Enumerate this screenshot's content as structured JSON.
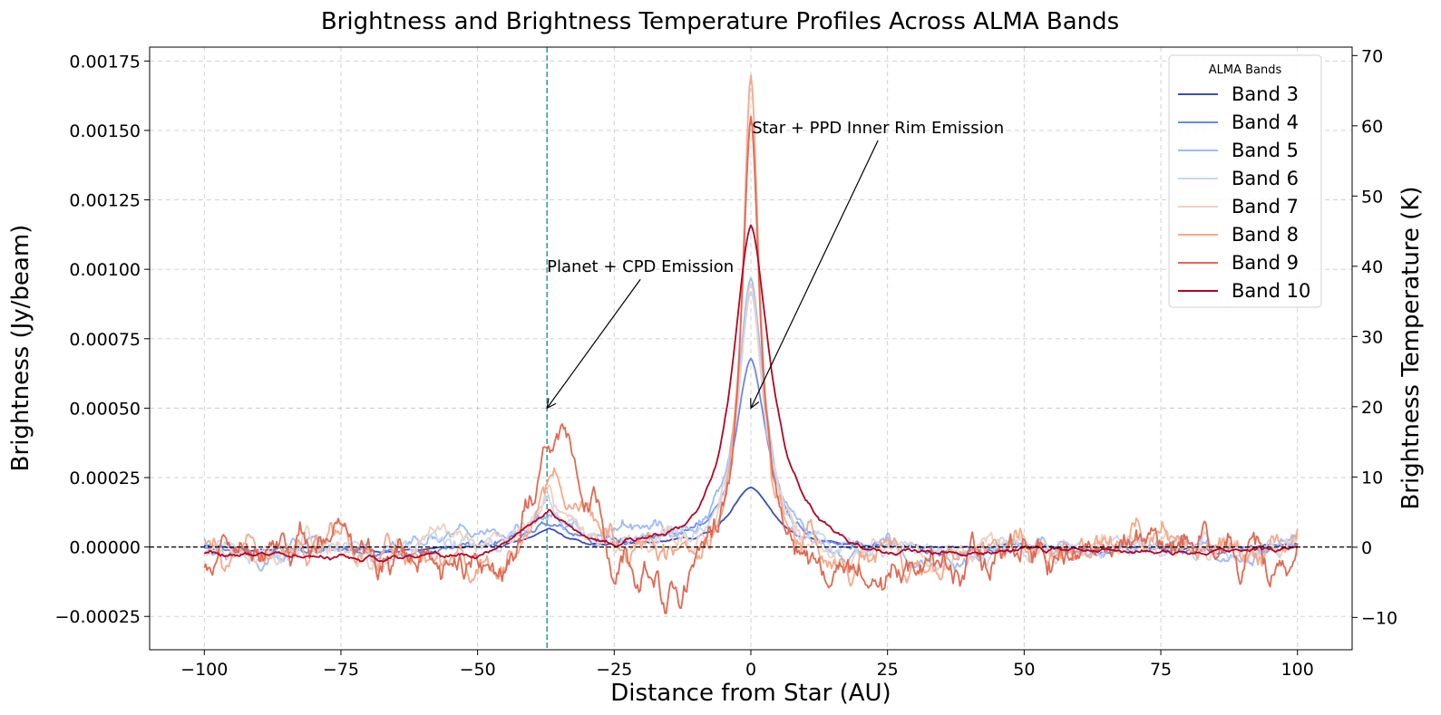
{
  "chart_data": {
    "type": "line",
    "title": "Brightness and Brightness Temperature Profiles Across ALMA Bands",
    "xlabel": "Distance from Star (AU)",
    "ylabel": "Brightness (Jy/beam)",
    "ylabel_right": "Brightness Temperature (K)",
    "xlim": [
      -110,
      110
    ],
    "ylim": [
      -0.00037,
      0.0018
    ],
    "ylim_right": [
      -14.6,
      71.2
    ],
    "xticks": [
      -100,
      -75,
      -50,
      -25,
      0,
      25,
      50,
      75,
      100
    ],
    "xtick_labels": [
      "−100",
      "−75",
      "−50",
      "−25",
      "0",
      "25",
      "50",
      "75",
      "100"
    ],
    "yticks": [
      -0.00025,
      0,
      0.00025,
      0.0005,
      0.00075,
      0.001,
      0.00125,
      0.0015,
      0.00175
    ],
    "ytick_labels": [
      "−0.00025",
      "0.00000",
      "0.00025",
      "0.00050",
      "0.00075",
      "0.00100",
      "0.00125",
      "0.00150",
      "0.00175"
    ],
    "yticks_right": [
      -10,
      0,
      10,
      20,
      30,
      40,
      50,
      60,
      70
    ],
    "ytick_right_labels": [
      "−10",
      "0",
      "10",
      "20",
      "30",
      "40",
      "50",
      "60",
      "70"
    ],
    "grid": true,
    "legend": {
      "title": "ALMA Bands",
      "placement": "top-right"
    },
    "reference_lines": [
      {
        "orientation": "vertical",
        "x": -37.3,
        "color": "#119988",
        "style": "dashed"
      },
      {
        "orientation": "horizontal",
        "y": 0,
        "color": "#000000",
        "style": "dashed"
      }
    ],
    "annotations": [
      {
        "text": "Planet + CPD Emission",
        "text_x": -37.3,
        "text_y": 0.00099,
        "arrow_x": -37.3,
        "arrow_y": 0.0005
      },
      {
        "text": "Star + PPD Inner Rim Emission",
        "text_x": 0.2,
        "text_y": 0.00149,
        "arrow_x": 0,
        "arrow_y": 0.0005
      }
    ],
    "series": [
      {
        "name": "Band 3",
        "color": "#3b4cc0",
        "peak": 0.000215,
        "planet_peak": 6.5e-05,
        "width": 5.0,
        "noise": 6e-06,
        "seed": 3,
        "x": [
          -100,
          -90,
          -80,
          -70,
          -60,
          -50,
          -45,
          -40,
          -37,
          -34,
          -30,
          -25,
          -20,
          -15,
          -10,
          -6,
          -4,
          -2,
          0,
          2,
          4,
          6,
          10,
          15,
          20,
          25,
          30,
          40,
          50,
          60,
          70,
          80,
          90,
          100
        ],
        "y": [
          5e-06,
          -1e-05,
          -5e-06,
          -1e-05,
          -1e-05,
          5e-06,
          1e-05,
          4e-05,
          6.5e-05,
          4e-05,
          1.2e-05,
          1.2e-05,
          2e-05,
          2.5e-05,
          3e-05,
          5e-05,
          8e-05,
          0.00015,
          0.000215,
          0.00015,
          8e-05,
          4e-05,
          2e-05,
          1e-05,
          5e-06,
          5e-06,
          0.0,
          0.0,
          1e-05,
          -1e-05,
          0.0,
          -5e-06,
          0.0,
          1e-05
        ]
      },
      {
        "name": "Band 4",
        "color": "#6788ee",
        "peak": 0.00068,
        "planet_peak": 9e-05,
        "width": 3.6,
        "noise": 1.8e-05,
        "seed": 4,
        "x": [
          -100,
          -90,
          -80,
          -70,
          -60,
          -50,
          -45,
          -40,
          -37,
          -34,
          -30,
          -25,
          -20,
          -15,
          -10,
          -6,
          -4,
          -2,
          0,
          2,
          4,
          6,
          10,
          15,
          20,
          25,
          30,
          40,
          50,
          60,
          70,
          80,
          90,
          100
        ],
        "y": [
          0.0,
          -2e-05,
          -1e-05,
          -2e-05,
          -2e-05,
          1e-05,
          2e-05,
          6e-05,
          9e-05,
          6e-05,
          2e-05,
          2e-05,
          3e-05,
          4e-05,
          6e-05,
          0.00012,
          0.0002,
          0.00042,
          0.00068,
          0.00042,
          0.0002,
          0.0001,
          4e-05,
          1e-05,
          0.0,
          0.0,
          -1e-05,
          -2e-05,
          0.0,
          -2e-05,
          0.0,
          -1e-05,
          -1e-05,
          0.0
        ]
      },
      {
        "name": "Band 5",
        "color": "#9abbff",
        "peak": 0.00097,
        "planet_peak": 0.00012,
        "width": 3.0,
        "noise": 3.5e-05,
        "seed": 5,
        "x": [
          -100,
          -90,
          -80,
          -70,
          -60,
          -50,
          -45,
          -40,
          -37,
          -34,
          -30,
          -25,
          -20,
          -15,
          -10,
          -6,
          -4,
          -2,
          0,
          2,
          4,
          6,
          10,
          15,
          20,
          25,
          30,
          40,
          50,
          60,
          70,
          80,
          90,
          100
        ],
        "y": [
          0.0,
          -7e-05,
          4e-05,
          -2e-05,
          1e-05,
          5e-05,
          3e-05,
          8e-05,
          0.00012,
          8e-05,
          3e-05,
          6e-05,
          8e-05,
          6e-05,
          6e-05,
          0.00014,
          0.0003,
          0.0006,
          0.00097,
          0.0006,
          0.0003,
          0.00012,
          4e-05,
          0.0,
          -4e-05,
          4e-05,
          -7e-05,
          -4e-05,
          2e-05,
          -3e-05,
          1e-05,
          2e-05,
          -4e-05,
          2e-05
        ]
      },
      {
        "name": "Band 6",
        "color": "#c9d7f0",
        "peak": 0.00092,
        "planet_peak": 0.00015,
        "width": 2.8,
        "noise": 4e-05,
        "seed": 6,
        "x": [
          -100,
          -90,
          -80,
          -70,
          -60,
          -50,
          -45,
          -40,
          -37,
          -34,
          -30,
          -25,
          -20,
          -15,
          -10,
          -6,
          -4,
          -2,
          0,
          2,
          4,
          6,
          10,
          15,
          20,
          25,
          30,
          40,
          50,
          60,
          70,
          80,
          90,
          100
        ],
        "y": [
          0.0,
          -2e-05,
          1e-05,
          -2e-05,
          1e-05,
          2e-05,
          3e-05,
          0.0001,
          0.00015,
          0.0001,
          3e-05,
          3e-05,
          5e-05,
          4e-05,
          5e-05,
          0.00012,
          0.00028,
          0.00058,
          0.00092,
          0.00058,
          0.00028,
          0.00012,
          4e-05,
          0.0,
          -2e-05,
          0.0,
          -2e-05,
          -1e-05,
          0.0,
          -1e-05,
          0.0,
          1e-05,
          -1e-05,
          1e-05
        ]
      },
      {
        "name": "Band 7",
        "color": "#edd1c2",
        "peak": 0.00095,
        "planet_peak": 0.00018,
        "width": 2.6,
        "noise": 5e-05,
        "seed": 7,
        "x": [
          -100,
          -90,
          -80,
          -70,
          -60,
          -50,
          -45,
          -40,
          -37,
          -34,
          -30,
          -25,
          -20,
          -15,
          -10,
          -6,
          -4,
          -2,
          0,
          2,
          4,
          6,
          10,
          15,
          20,
          25,
          30,
          40,
          50,
          60,
          70,
          80,
          90,
          100
        ],
        "y": [
          1e-05,
          -3e-05,
          1e-05,
          -3e-05,
          2e-05,
          3e-05,
          4e-05,
          0.00012,
          0.00018,
          0.00012,
          4e-05,
          2e-05,
          4e-05,
          3e-05,
          4e-05,
          0.00012,
          0.0003,
          0.0006,
          0.00095,
          0.0006,
          0.0003,
          0.00012,
          3e-05,
          -1e-05,
          -3e-05,
          1e-05,
          -3e-05,
          -2e-05,
          2e-05,
          -2e-05,
          1e-05,
          2e-05,
          -2e-05,
          1e-05
        ]
      },
      {
        "name": "Band 8",
        "color": "#f7a889",
        "peak": 0.0017,
        "planet_peak": 0.0002,
        "width": 1.8,
        "noise": 7e-05,
        "seed": 8,
        "x": [
          -100,
          -90,
          -80,
          -70,
          -60,
          -50,
          -45,
          -40,
          -37,
          -34,
          -30,
          -25,
          -20,
          -15,
          -10,
          -6,
          -4,
          -2,
          0,
          2,
          4,
          6,
          10,
          15,
          20,
          25,
          30,
          40,
          50,
          60,
          70,
          80,
          90,
          100
        ],
        "y": [
          0.0,
          -4e-05,
          1e-05,
          -4e-05,
          0.0,
          -8e-05,
          -0.00012,
          8e-05,
          0.0002,
          0.00015,
          0.0001,
          0.0,
          2e-05,
          -4e-05,
          2e-05,
          8e-05,
          0.00025,
          0.0008,
          0.0017,
          0.0008,
          0.00025,
          8e-05,
          1e-05,
          -6e-05,
          -5e-05,
          -3e-05,
          -6e-05,
          -3e-05,
          2e-05,
          -2e-05,
          3e-05,
          0.0,
          -3e-05,
          0.0
        ]
      },
      {
        "name": "Band 9",
        "color": "#e26952",
        "peak": 0.00155,
        "planet_peak": 0.00042,
        "width": 1.9,
        "noise": 8.5e-05,
        "seed": 9,
        "x": [
          -100,
          -90,
          -80,
          -70,
          -60,
          -50,
          -45,
          -40,
          -37,
          -34,
          -30,
          -25,
          -20,
          -15,
          -10,
          -6,
          -4,
          -2,
          0,
          2,
          4,
          6,
          10,
          15,
          20,
          25,
          30,
          40,
          50,
          60,
          70,
          80,
          90,
          100
        ],
        "y": [
          -7e-05,
          0.0,
          6e-05,
          -2e-05,
          -3e-05,
          -0.0001,
          -8e-05,
          0.0002,
          0.00032,
          0.00045,
          0.00015,
          -9e-05,
          -0.00015,
          -0.00018,
          -8e-05,
          5e-05,
          0.0002,
          0.0007,
          0.00155,
          0.0007,
          0.0002,
          4e-05,
          -4e-05,
          -9e-05,
          -0.0001,
          -8e-05,
          -0.0001,
          -4e-05,
          0.0,
          -3e-05,
          2e-05,
          4e-05,
          -2e-05,
          -8e-05
        ]
      },
      {
        "name": "Band 10",
        "color": "#b40426",
        "peak": 0.00116,
        "planet_peak": 0.00013,
        "width": 4.2,
        "noise": 1.2e-05,
        "seed": 10,
        "x": [
          -100,
          -90,
          -80,
          -70,
          -60,
          -50,
          -45,
          -40,
          -37,
          -34,
          -30,
          -25,
          -20,
          -15,
          -10,
          -6,
          -4,
          -2,
          0,
          2,
          4,
          6,
          10,
          15,
          20,
          25,
          30,
          40,
          50,
          60,
          70,
          80,
          90,
          100
        ],
        "y": [
          -2e-05,
          -3e-05,
          -3e-05,
          -4e-05,
          -3e-05,
          -3e-05,
          1e-05,
          8e-05,
          0.00013,
          8e-05,
          3e-05,
          1e-05,
          3e-05,
          5e-05,
          0.0001,
          0.0002,
          0.00035,
          0.0007,
          0.00116,
          0.0008,
          0.0006,
          0.00035,
          0.00015,
          5e-05,
          0.0,
          -2e-05,
          -2e-05,
          -3e-05,
          -1e-05,
          -1e-05,
          -2e-05,
          -2e-05,
          -1e-05,
          0.0
        ]
      }
    ]
  }
}
